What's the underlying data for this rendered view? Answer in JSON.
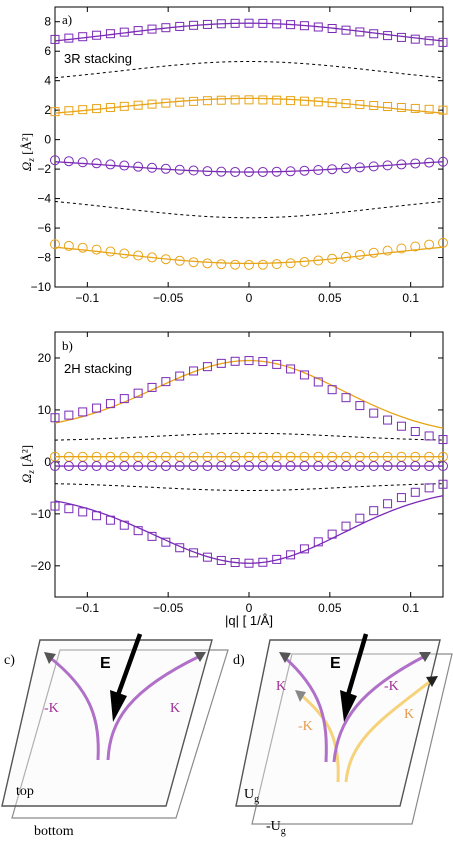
{
  "colors": {
    "purple": "#7a2bb6",
    "orange": "#e8a418",
    "dashed": "#000000",
    "k_pink": "#b070c8",
    "k_yellow": "#f6d27a",
    "k_pink_text": "#a0309a",
    "k_orange_text": "#e89a50"
  },
  "chart_data": [
    {
      "type": "line",
      "panel_label": "a)",
      "annotation": "3R stacking",
      "xlabel": "",
      "ylabel_main": "Ω",
      "ylabel_sub": "z",
      "ylabel_unit": " [Å²]",
      "xlim": [
        -0.12,
        0.12
      ],
      "ylim": [
        -10,
        9
      ],
      "xticks": [
        -0.1,
        -0.05,
        0,
        0.05,
        0.1
      ],
      "xtick_labels": [
        "−0.1",
        "−0.05",
        "0",
        "0.05",
        "0.1"
      ],
      "yticks": [
        -10,
        -8,
        -6,
        -4,
        -2,
        0,
        2,
        4,
        6,
        8
      ],
      "ytick_labels": [
        "−10",
        "−8",
        "−6",
        "−4",
        "−2",
        "0",
        "2",
        "4",
        "6",
        "8"
      ],
      "curves": [
        {
          "style": "solid",
          "color": "purple",
          "center": 7.9,
          "edge": 6.7
        },
        {
          "style": "solid",
          "color": "orange",
          "center": 2.8,
          "edge": 1.8
        },
        {
          "style": "solid",
          "color": "purple",
          "center": -2.2,
          "edge": -1.5
        },
        {
          "style": "solid",
          "color": "orange",
          "center": -8.4,
          "edge": -7.3
        },
        {
          "style": "dashed",
          "color": "dashed",
          "center": 5.3,
          "edge": 4.2
        },
        {
          "style": "dashed",
          "color": "dashed",
          "center": -5.3,
          "edge": -4.2
        }
      ],
      "markers": [
        {
          "shape": "square",
          "color": "purple",
          "center": 7.9,
          "left": 6.8,
          "right": 6.6
        },
        {
          "shape": "square",
          "color": "orange",
          "center": 2.7,
          "left": 1.9,
          "right": 2.0
        },
        {
          "shape": "circle",
          "color": "purple",
          "center": -2.2,
          "left": -1.4,
          "right": -1.5
        },
        {
          "shape": "circle",
          "color": "orange",
          "center": -8.5,
          "left": -7.1,
          "right": -7.0
        }
      ]
    },
    {
      "type": "line",
      "panel_label": "b)",
      "annotation": "2H stacking",
      "xlabel": "|q| [ 1/Å]",
      "ylabel_main": "Ω",
      "ylabel_sub": "z",
      "ylabel_unit": " [Å²]",
      "xlim": [
        -0.12,
        0.12
      ],
      "ylim": [
        -26,
        25
      ],
      "xticks": [
        -0.1,
        -0.05,
        0,
        0.05,
        0.1
      ],
      "xtick_labels": [
        "−0.1",
        "−0.05",
        "0",
        "0.05",
        "0.1"
      ],
      "yticks": [
        -20,
        -10,
        0,
        10,
        20
      ],
      "ytick_labels": [
        "−20",
        "−10",
        "0",
        "10",
        "20"
      ],
      "curves": [
        {
          "style": "solid",
          "color": "orange",
          "center": 19.5,
          "left": 7.5,
          "right": 6.5
        },
        {
          "style": "solid",
          "color": "purple",
          "center": -19.5,
          "left": -7.5,
          "right": -6.5
        },
        {
          "style": "solid",
          "color": "orange",
          "center": 1.0,
          "edge": 1.0
        },
        {
          "style": "solid",
          "color": "purple",
          "center": -0.8,
          "edge": -0.8
        },
        {
          "style": "dashed",
          "color": "dashed",
          "center": 5.5,
          "edge": 4.2
        },
        {
          "style": "dashed",
          "color": "dashed",
          "center": -5.5,
          "edge": -4.2
        }
      ],
      "markers": [
        {
          "shape": "square",
          "color": "purple",
          "center": 19.5,
          "left": 8.5,
          "right": 4.3
        },
        {
          "shape": "square",
          "color": "purple",
          "center": -19.5,
          "left": -8.5,
          "right": -4.3
        },
        {
          "shape": "circle",
          "color": "orange",
          "center": 1.0,
          "left": 1.0,
          "right": 1.0
        },
        {
          "shape": "circle",
          "color": "purple",
          "center": -0.8,
          "left": -0.8,
          "right": -0.8
        }
      ]
    }
  ],
  "diagram_c": {
    "panel_label": "c)",
    "field_label": "E",
    "k_left": "-K",
    "k_right": "K",
    "top_label": "top",
    "bottom_label": "bottom"
  },
  "diagram_d": {
    "panel_label": "d)",
    "field_label": "E",
    "k_left_top": "K",
    "k_right_top": "-K",
    "k_left_bottom": "-K",
    "k_right_bottom": "K",
    "top_label_main": "U",
    "top_label_sub": "g",
    "bottom_label_main": "-U",
    "bottom_label_sub": "g"
  }
}
